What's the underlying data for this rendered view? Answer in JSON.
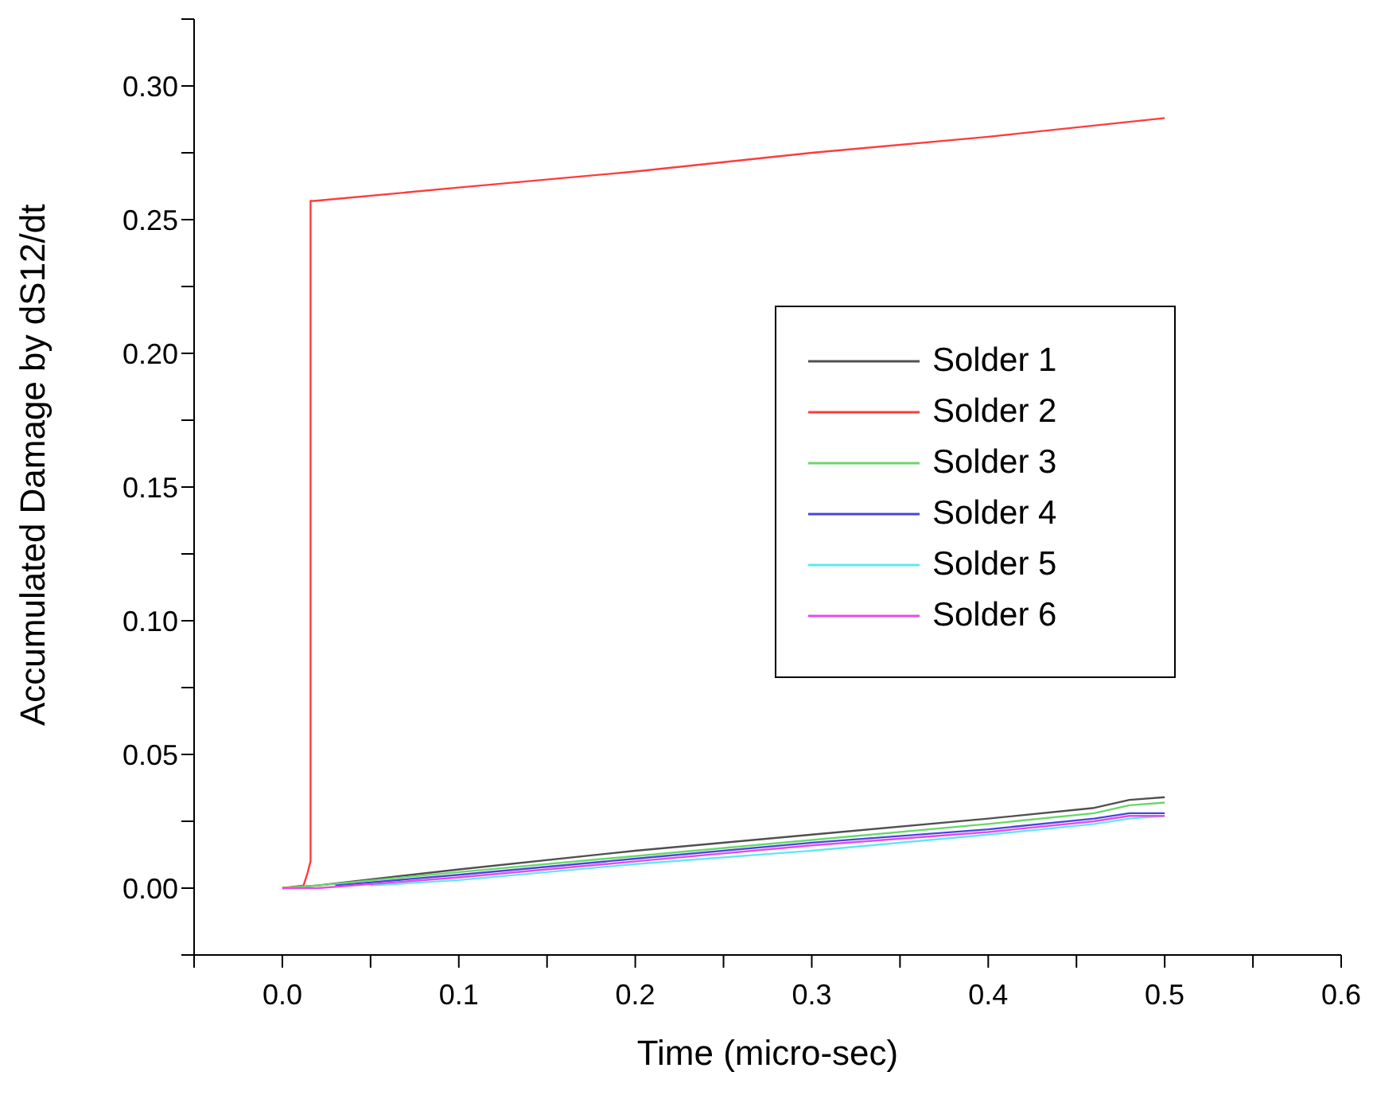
{
  "chart_data": {
    "type": "line",
    "xlabel": "Time (micro-sec)",
    "ylabel": "Accumulated Damage by dS12/dt",
    "xlim": [
      -0.05,
      0.6
    ],
    "ylim": [
      -0.025,
      0.325
    ],
    "xticks": [
      {
        "value": -0.05,
        "label": null
      },
      {
        "value": 0,
        "label": "0.0"
      },
      {
        "value": 0.05,
        "label": null
      },
      {
        "value": 0.1,
        "label": "0.1"
      },
      {
        "value": 0.15,
        "label": null
      },
      {
        "value": 0.2,
        "label": "0.2"
      },
      {
        "value": 0.25,
        "label": null
      },
      {
        "value": 0.3,
        "label": "0.3"
      },
      {
        "value": 0.35,
        "label": null
      },
      {
        "value": 0.4,
        "label": "0.4"
      },
      {
        "value": 0.45,
        "label": null
      },
      {
        "value": 0.5,
        "label": "0.5"
      },
      {
        "value": 0.55,
        "label": null
      },
      {
        "value": 0.6,
        "label": "0.6"
      }
    ],
    "yticks": [
      {
        "value": -0.025,
        "label": null
      },
      {
        "value": 0,
        "label": "0.00"
      },
      {
        "value": 0.025,
        "label": null
      },
      {
        "value": 0.05,
        "label": "0.05"
      },
      {
        "value": 0.075,
        "label": null
      },
      {
        "value": 0.1,
        "label": "0.10"
      },
      {
        "value": 0.125,
        "label": null
      },
      {
        "value": 0.15,
        "label": "0.15"
      },
      {
        "value": 0.175,
        "label": null
      },
      {
        "value": 0.2,
        "label": "0.20"
      },
      {
        "value": 0.225,
        "label": null
      },
      {
        "value": 0.25,
        "label": "0.25"
      },
      {
        "value": 0.275,
        "label": null
      },
      {
        "value": 0.3,
        "label": "0.30"
      },
      {
        "value": 0.325,
        "label": null
      }
    ],
    "grid": false,
    "legend": "right",
    "marker": "none",
    "line_style": "solid",
    "series": [
      {
        "name": "Solder 1",
        "color": "#505050",
        "x": [
          0,
          0.02,
          0.1,
          0.2,
          0.3,
          0.4,
          0.46,
          0.48,
          0.5
        ],
        "values": [
          0,
          0.001,
          0.007,
          0.014,
          0.02,
          0.026,
          0.03,
          0.033,
          0.034
        ]
      },
      {
        "name": "Solder 2",
        "color": "#ff3b3b",
        "x": [
          0,
          0.012,
          0.014,
          0.016,
          0.016,
          0.018,
          0.1,
          0.2,
          0.3,
          0.4,
          0.5
        ],
        "values": [
          0,
          0.001,
          0.005,
          0.01,
          0.257,
          0.257,
          0.262,
          0.268,
          0.275,
          0.281,
          0.288
        ]
      },
      {
        "name": "Solder 3",
        "color": "#66d966",
        "x": [
          0,
          0.02,
          0.1,
          0.2,
          0.3,
          0.4,
          0.46,
          0.48,
          0.5
        ],
        "values": [
          0,
          0.001,
          0.006,
          0.012,
          0.018,
          0.024,
          0.028,
          0.031,
          0.032
        ]
      },
      {
        "name": "Solder 4",
        "color": "#4646e0",
        "x": [
          0.03,
          0.1,
          0.2,
          0.3,
          0.4,
          0.46,
          0.48,
          0.5
        ],
        "values": [
          0.001,
          0.005,
          0.011,
          0.017,
          0.022,
          0.026,
          0.028,
          0.028
        ]
      },
      {
        "name": "Solder 5",
        "color": "#5ee8f0",
        "x": [
          0.05,
          0.1,
          0.2,
          0.3,
          0.4,
          0.46,
          0.48,
          0.5
        ],
        "values": [
          0.001,
          0.003,
          0.009,
          0.014,
          0.02,
          0.024,
          0.026,
          0.027
        ]
      },
      {
        "name": "Solder 6",
        "color": "#e84ae8",
        "x": [
          0,
          0.02,
          0.1,
          0.2,
          0.3,
          0.4,
          0.46,
          0.48,
          0.5
        ],
        "values": [
          0,
          0,
          0.004,
          0.01,
          0.016,
          0.021,
          0.025,
          0.027,
          0.027
        ]
      }
    ]
  }
}
